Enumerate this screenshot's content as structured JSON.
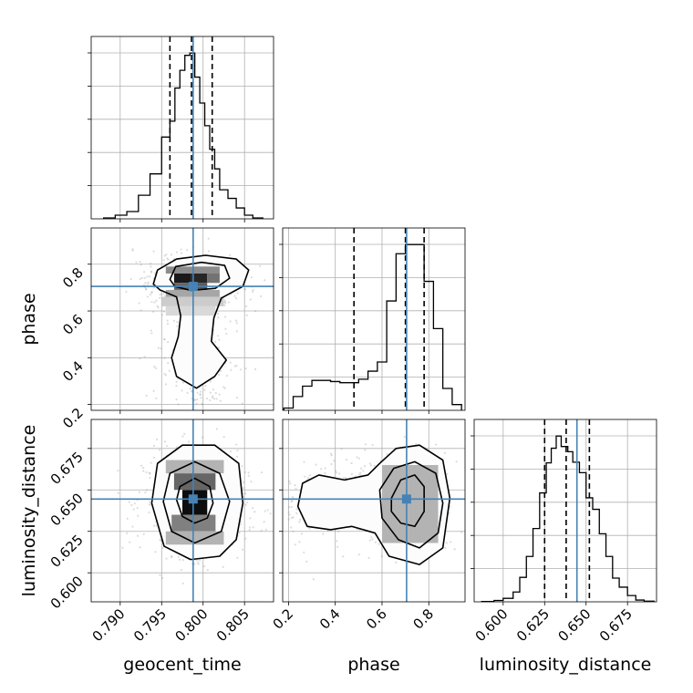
{
  "chart_data": {
    "type": "corner",
    "parameters": [
      "geocent_time",
      "phase",
      "luminosity_distance"
    ],
    "truths": {
      "geocent_time": 0.7988,
      "phase": 0.705,
      "luminosity_distance": 0.6445
    },
    "grid": true,
    "ranges": {
      "geocent_time": [
        0.7865,
        0.8085
      ],
      "phase": [
        0.175,
        0.955
      ],
      "luminosity_distance": [
        0.5825,
        0.6925
      ]
    },
    "ticks": {
      "geocent_time": [
        "0.790",
        "0.795",
        "0.800",
        "0.805"
      ],
      "phase": [
        "0.2",
        "0.4",
        "0.6",
        "0.8"
      ],
      "luminosity_distance": [
        "0.600",
        "0.625",
        "0.650",
        "0.675"
      ]
    },
    "diagonal": [
      {
        "parameter": "geocent_time",
        "quantiles": [
          0.796,
          0.7986,
          0.8011
        ],
        "bin_edges": [
          0.788,
          0.7894,
          0.7908,
          0.7922,
          0.7936,
          0.795,
          0.796,
          0.7966,
          0.7972,
          0.7978,
          0.7984,
          0.799,
          0.7996,
          0.8002,
          0.8008,
          0.8014,
          0.802,
          0.803,
          0.804,
          0.805,
          0.806,
          0.8072
        ],
        "counts": [
          2,
          8,
          16,
          52,
          99,
          180,
          215,
          288,
          327,
          360,
          365,
          312,
          255,
          205,
          153,
          110,
          64,
          45,
          24,
          8,
          2
        ]
      },
      {
        "parameter": "phase",
        "quantiles": [
          0.48,
          0.7,
          0.78
        ],
        "bin_edges": [
          0.18,
          0.22,
          0.26,
          0.3,
          0.34,
          0.38,
          0.42,
          0.46,
          0.5,
          0.54,
          0.58,
          0.62,
          0.66,
          0.7,
          0.74,
          0.78,
          0.82,
          0.86,
          0.9,
          0.94
        ],
        "counts": [
          10,
          60,
          105,
          130,
          130,
          125,
          120,
          120,
          135,
          170,
          210,
          475,
          680,
          720,
          720,
          560,
          355,
          95,
          25
        ]
      },
      {
        "parameter": "luminosity_distance",
        "quantiles": [
          0.625,
          0.638,
          0.652
        ],
        "bin_edges": [
          0.587,
          0.5945,
          0.6,
          0.606,
          0.61,
          0.614,
          0.618,
          0.622,
          0.626,
          0.629,
          0.632,
          0.635,
          0.639,
          0.642,
          0.646,
          0.65,
          0.654,
          0.658,
          0.662,
          0.666,
          0.67,
          0.675,
          0.68,
          0.685,
          0.691
        ],
        "counts": [
          1,
          4,
          10,
          28,
          70,
          130,
          210,
          312,
          398,
          440,
          475,
          445,
          430,
          400,
          370,
          298,
          265,
          195,
          130,
          68,
          42,
          18,
          5,
          2
        ]
      }
    ],
    "pairs": [
      {
        "x": "geocent_time",
        "y": "phase",
        "points_center": [
          0.799,
          0.7
        ],
        "contours": [
          [
            [
              0.794,
              0.715
            ],
            [
              0.7945,
              0.775
            ],
            [
              0.7968,
              0.822
            ],
            [
              0.8003,
              0.838
            ],
            [
              0.804,
              0.822
            ],
            [
              0.8055,
              0.775
            ],
            [
              0.8048,
              0.705
            ],
            [
              0.8022,
              0.655
            ],
            [
              0.8013,
              0.57
            ],
            [
              0.801,
              0.47
            ],
            [
              0.8028,
              0.39
            ],
            [
              0.8014,
              0.32
            ],
            [
              0.7992,
              0.27
            ],
            [
              0.7968,
              0.32
            ],
            [
              0.7962,
              0.4
            ],
            [
              0.797,
              0.49
            ],
            [
              0.7973,
              0.58
            ],
            [
              0.7968,
              0.66
            ],
            [
              0.7948,
              0.69
            ]
          ],
          [
            [
              0.796,
              0.735
            ],
            [
              0.7967,
              0.79
            ],
            [
              0.7998,
              0.808
            ],
            [
              0.8026,
              0.795
            ],
            [
              0.8032,
              0.74
            ],
            [
              0.8015,
              0.697
            ],
            [
              0.7985,
              0.688
            ],
            [
              0.7966,
              0.705
            ]
          ]
        ],
        "density": [
          [
            0.7965,
            0.72,
            0.7985,
            0.76,
            0.9
          ],
          [
            0.7985,
            0.72,
            0.8005,
            0.76,
            0.85
          ],
          [
            0.7965,
            0.69,
            0.7985,
            0.72,
            0.6
          ],
          [
            0.7985,
            0.69,
            0.8005,
            0.72,
            0.65
          ],
          [
            0.8005,
            0.72,
            0.802,
            0.76,
            0.55
          ],
          [
            0.7955,
            0.76,
            0.802,
            0.79,
            0.45
          ],
          [
            0.7955,
            0.66,
            0.802,
            0.69,
            0.35
          ],
          [
            0.795,
            0.62,
            0.8025,
            0.66,
            0.2
          ],
          [
            0.7955,
            0.58,
            0.8015,
            0.62,
            0.15
          ]
        ]
      },
      {
        "x": "geocent_time",
        "y": "luminosity_distance",
        "points_center": [
          0.799,
          0.642
        ],
        "contours": [
          [
            [
              0.7938,
              0.642
            ],
            [
              0.7945,
              0.666
            ],
            [
              0.7975,
              0.677
            ],
            [
              0.8014,
              0.677
            ],
            [
              0.8043,
              0.666
            ],
            [
              0.8048,
              0.642
            ],
            [
              0.804,
              0.62
            ],
            [
              0.802,
              0.61
            ],
            [
              0.7985,
              0.608
            ],
            [
              0.7953,
              0.616
            ]
          ],
          [
            [
              0.7952,
              0.643
            ],
            [
              0.796,
              0.66
            ],
            [
              0.799,
              0.667
            ],
            [
              0.802,
              0.66
            ],
            [
              0.8032,
              0.643
            ],
            [
              0.8022,
              0.625
            ],
            [
              0.799,
              0.618
            ],
            [
              0.7962,
              0.625
            ]
          ],
          [
            [
              0.7968,
              0.644
            ],
            [
              0.7972,
              0.652
            ],
            [
              0.799,
              0.657
            ],
            [
              0.8008,
              0.652
            ],
            [
              0.8012,
              0.642
            ],
            [
              0.8005,
              0.633
            ],
            [
              0.799,
              0.63
            ],
            [
              0.7975,
              0.634
            ]
          ]
        ],
        "density": [
          [
            0.7975,
            0.635,
            0.8005,
            0.65,
            0.95
          ],
          [
            0.7965,
            0.65,
            0.8015,
            0.66,
            0.6
          ],
          [
            0.7962,
            0.625,
            0.8015,
            0.635,
            0.5
          ],
          [
            0.7955,
            0.66,
            0.8025,
            0.668,
            0.3
          ],
          [
            0.7955,
            0.617,
            0.8025,
            0.625,
            0.3
          ]
        ]
      },
      {
        "x": "phase",
        "y": "luminosity_distance",
        "points_center": [
          0.68,
          0.643
        ],
        "contours": [
          [
            [
              0.26,
              0.654
            ],
            [
              0.33,
              0.659
            ],
            [
              0.44,
              0.656
            ],
            [
              0.54,
              0.659
            ],
            [
              0.59,
              0.666
            ],
            [
              0.66,
              0.675
            ],
            [
              0.76,
              0.677
            ],
            [
              0.86,
              0.668
            ],
            [
              0.89,
              0.645
            ],
            [
              0.86,
              0.615
            ],
            [
              0.76,
              0.605
            ],
            [
              0.63,
              0.61
            ],
            [
              0.57,
              0.624
            ],
            [
              0.47,
              0.628
            ],
            [
              0.38,
              0.626
            ],
            [
              0.28,
              0.628
            ],
            [
              0.24,
              0.64
            ]
          ],
          [
            [
              0.59,
              0.65
            ],
            [
              0.65,
              0.663
            ],
            [
              0.74,
              0.667
            ],
            [
              0.83,
              0.66
            ],
            [
              0.86,
              0.642
            ],
            [
              0.84,
              0.624
            ],
            [
              0.76,
              0.615
            ],
            [
              0.67,
              0.62
            ],
            [
              0.6,
              0.633
            ]
          ],
          [
            [
              0.64,
              0.645
            ],
            [
              0.68,
              0.656
            ],
            [
              0.74,
              0.659
            ],
            [
              0.78,
              0.652
            ],
            [
              0.78,
              0.637
            ],
            [
              0.74,
              0.628
            ],
            [
              0.68,
              0.63
            ],
            [
              0.64,
              0.637
            ]
          ]
        ],
        "density": [
          [
            0.68,
            0.632,
            0.76,
            0.652,
            0.95
          ],
          [
            0.64,
            0.625,
            0.8,
            0.66,
            0.6
          ],
          [
            0.6,
            0.618,
            0.84,
            0.665,
            0.3
          ]
        ]
      }
    ]
  }
}
